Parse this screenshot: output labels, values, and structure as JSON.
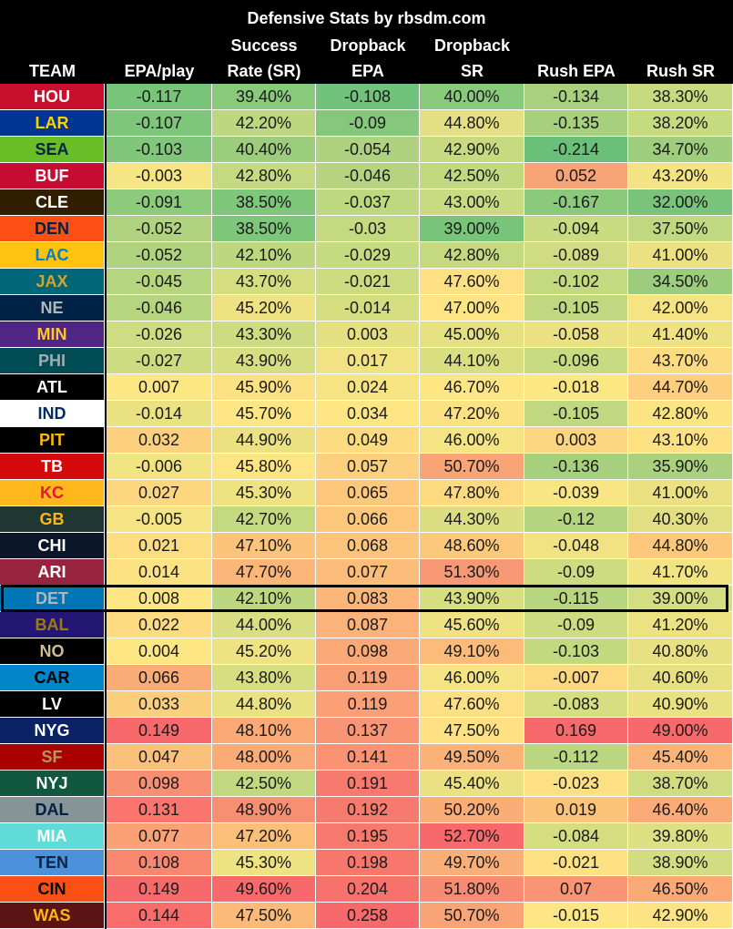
{
  "title": "Defensive Stats by rbsdm.com",
  "headers": [
    "TEAM",
    "EPA/play",
    "Success\nRate (SR)",
    "Dropback\nEPA",
    "Dropback\nSR",
    "Rush EPA",
    "Rush SR"
  ],
  "highlighted_team": "DET",
  "rows": [
    {
      "team": "HOU",
      "bg": "#c8102e",
      "fg": "#ffffff",
      "cells": [
        "-0.117",
        "39.40%",
        "-0.108",
        "40.00%",
        "-0.134",
        "38.30%"
      ],
      "colors": [
        "#78c57a",
        "#88c97b",
        "#71c27a",
        "#88c97b",
        "#a8d07e",
        "#c8da80"
      ]
    },
    {
      "team": "LAR",
      "bg": "#003594",
      "fg": "#ffd100",
      "cells": [
        "-0.107",
        "42.20%",
        "-0.09",
        "44.80%",
        "-0.135",
        "38.20%"
      ],
      "colors": [
        "#7ec67a",
        "#bdd780",
        "#86c87b",
        "#e3df82",
        "#a7d07e",
        "#c6da80"
      ]
    },
    {
      "team": "SEA",
      "bg": "#69be28",
      "fg": "#002244",
      "cells": [
        "-0.103",
        "40.40%",
        "-0.054",
        "42.90%",
        "-0.214",
        "34.70%"
      ],
      "colors": [
        "#80c67b",
        "#9ccd7d",
        "#aed27f",
        "#c7da80",
        "#6bc079",
        "#9dcd7d"
      ]
    },
    {
      "team": "BUF",
      "bg": "#c60c30",
      "fg": "#ffffff",
      "cells": [
        "-0.003",
        "42.80%",
        "-0.046",
        "42.50%",
        "0.052",
        "43.20%"
      ],
      "colors": [
        "#f6e683",
        "#c5da80",
        "#b6d47f",
        "#c2d980",
        "#f8a476",
        "#f4e383"
      ]
    },
    {
      "team": "CLE",
      "bg": "#311d00",
      "fg": "#ffffff",
      "cells": [
        "-0.091",
        "38.50%",
        "-0.037",
        "43.00%",
        "-0.167",
        "32.00%"
      ],
      "colors": [
        "#8cca7c",
        "#7ec67a",
        "#bed880",
        "#c9db81",
        "#8bca7c",
        "#79c47a"
      ]
    },
    {
      "team": "DEN",
      "bg": "#fb4f14",
      "fg": "#002244",
      "cells": [
        "-0.052",
        "38.50%",
        "-0.03",
        "39.00%",
        "-0.094",
        "37.50%"
      ],
      "colors": [
        "#b0d37f",
        "#7ec67a",
        "#c4d980",
        "#78c57a",
        "#cbdb81",
        "#c0d880"
      ]
    },
    {
      "team": "LAC",
      "bg": "#ffc20e",
      "fg": "#0080c6",
      "cells": [
        "-0.052",
        "42.10%",
        "-0.029",
        "42.80%",
        "-0.089",
        "41.00%"
      ],
      "colors": [
        "#b0d37f",
        "#bcd780",
        "#c6da80",
        "#c5da80",
        "#d0dc81",
        "#ebe182"
      ]
    },
    {
      "team": "JAX",
      "bg": "#006778",
      "fg": "#d7a22a",
      "cells": [
        "-0.045",
        "43.70%",
        "-0.021",
        "47.60%",
        "-0.102",
        "34.50%"
      ],
      "colors": [
        "#b6d57f",
        "#d4de81",
        "#cddc81",
        "#fde083",
        "#c4d980",
        "#9bcd7d"
      ]
    },
    {
      "team": "NE",
      "bg": "#002244",
      "fg": "#b0b7bc",
      "cells": [
        "-0.046",
        "45.20%",
        "-0.014",
        "47.00%",
        "-0.105",
        "42.00%"
      ],
      "colors": [
        "#b5d57f",
        "#eee282",
        "#d4de81",
        "#fee583",
        "#c1d880",
        "#f6e483"
      ]
    },
    {
      "team": "MIN",
      "bg": "#4f2683",
      "fg": "#ffc62f",
      "cells": [
        "-0.026",
        "43.30%",
        "0.003",
        "45.00%",
        "-0.058",
        "41.40%"
      ],
      "colors": [
        "#cedd81",
        "#cddc81",
        "#e4e082",
        "#e5e082",
        "#ebe182",
        "#efe283"
      ]
    },
    {
      "team": "PHI",
      "bg": "#004c54",
      "fg": "#a5acaf",
      "cells": [
        "-0.027",
        "43.90%",
        "0.017",
        "44.10%",
        "-0.096",
        "43.70%"
      ],
      "colors": [
        "#cddc81",
        "#d7de81",
        "#f1e383",
        "#d9de81",
        "#c9db81",
        "#fddb81"
      ]
    },
    {
      "team": "ATL",
      "bg": "#000000",
      "fg": "#ffffff",
      "cells": [
        "0.007",
        "45.90%",
        "0.024",
        "46.70%",
        "-0.018",
        "44.70%"
      ],
      "colors": [
        "#fde783",
        "#fde283",
        "#f6e483",
        "#fee683",
        "#fde783",
        "#fdcf7e"
      ]
    },
    {
      "team": "IND",
      "bg": "#ffffff",
      "fg": "#002c5f",
      "cells": [
        "-0.014",
        "45.70%",
        "0.034",
        "47.20%",
        "-0.105",
        "42.80%"
      ],
      "colors": [
        "#eae182",
        "#fde683",
        "#fde683",
        "#fde283",
        "#c1d880",
        "#fde483"
      ]
    },
    {
      "team": "PIT",
      "bg": "#000000",
      "fg": "#ffb612",
      "cells": [
        "0.032",
        "44.90%",
        "0.049",
        "46.00%",
        "0.003",
        "43.10%"
      ],
      "colors": [
        "#fcd07e",
        "#ebe182",
        "#fddb81",
        "#f5e483",
        "#fcd580",
        "#fde183"
      ]
    },
    {
      "team": "TB",
      "bg": "#d50a0a",
      "fg": "#ffffff",
      "cells": [
        "-0.006",
        "45.80%",
        "0.057",
        "50.70%",
        "-0.136",
        "35.90%"
      ],
      "colors": [
        "#f3e483",
        "#fee583",
        "#fdd07f",
        "#f9a476",
        "#a6cf7e",
        "#abd17e"
      ]
    },
    {
      "team": "KC",
      "bg": "#ffb81c",
      "fg": "#e31837",
      "cells": [
        "0.027",
        "45.30%",
        "0.065",
        "47.80%",
        "-0.039",
        "41.00%"
      ],
      "colors": [
        "#fdd680",
        "#efe283",
        "#fdc87c",
        "#fdda80",
        "#f8e583",
        "#ebe182"
      ]
    },
    {
      "team": "GB",
      "bg": "#203731",
      "fg": "#ffb612",
      "cells": [
        "-0.005",
        "42.70%",
        "0.066",
        "44.30%",
        "-0.12",
        "40.30%"
      ],
      "colors": [
        "#f4e483",
        "#c4d980",
        "#fdc77c",
        "#dbdf81",
        "#b4d47f",
        "#e2df82"
      ]
    },
    {
      "team": "CHI",
      "bg": "#0b162a",
      "fg": "#ffffff",
      "cells": [
        "0.021",
        "47.10%",
        "0.068",
        "48.60%",
        "-0.048",
        "44.80%"
      ],
      "colors": [
        "#fddd81",
        "#fcc47b",
        "#fdc57b",
        "#fcc97c",
        "#f1e383",
        "#fcc97c"
      ]
    },
    {
      "team": "ARI",
      "bg": "#97233f",
      "fg": "#ffffff",
      "cells": [
        "0.014",
        "47.70%",
        "0.077",
        "51.30%",
        "-0.09",
        "41.70%"
      ],
      "colors": [
        "#fde283",
        "#fcb679",
        "#fdbd7a",
        "#f89975",
        "#cedc81",
        "#f2e383"
      ]
    },
    {
      "team": "DET",
      "bg": "#0076b6",
      "fg": "#b0b7bc",
      "cells": [
        "0.008",
        "42.10%",
        "0.083",
        "43.90%",
        "-0.115",
        "39.00%"
      ],
      "colors": [
        "#fde683",
        "#bcd780",
        "#fcb679",
        "#d6de81",
        "#b8d57f",
        "#d3dd81"
      ]
    },
    {
      "team": "BAL",
      "bg": "#241773",
      "fg": "#9e7c0c",
      "cells": [
        "0.022",
        "44.00%",
        "0.087",
        "45.60%",
        "-0.09",
        "41.20%"
      ],
      "colors": [
        "#fddc81",
        "#d8de81",
        "#fcb278",
        "#eee282",
        "#cedc81",
        "#ede282"
      ]
    },
    {
      "team": "NO",
      "bg": "#000000",
      "fg": "#d3bc8d",
      "cells": [
        "0.004",
        "45.20%",
        "0.098",
        "49.10%",
        "-0.103",
        "40.80%"
      ],
      "colors": [
        "#fee783",
        "#eee282",
        "#fba977",
        "#fcbb79",
        "#c3d980",
        "#e8e082"
      ]
    },
    {
      "team": "CAR",
      "bg": "#0085ca",
      "fg": "#000000",
      "cells": [
        "0.066",
        "43.80%",
        "0.119",
        "46.00%",
        "-0.007",
        "40.60%"
      ],
      "colors": [
        "#faac77",
        "#d6de81",
        "#fa9f76",
        "#f5e483",
        "#fdd981",
        "#e6e082"
      ]
    },
    {
      "team": "LV",
      "bg": "#000000",
      "fg": "#ffffff",
      "cells": [
        "0.033",
        "44.80%",
        "0.119",
        "47.60%",
        "-0.083",
        "40.90%"
      ],
      "colors": [
        "#fccf7e",
        "#e9e182",
        "#fa9f76",
        "#fde083",
        "#d5de81",
        "#e9e182"
      ]
    },
    {
      "team": "NYG",
      "bg": "#0b2265",
      "fg": "#ffffff",
      "cells": [
        "0.149",
        "48.10%",
        "0.137",
        "47.50%",
        "0.169",
        "49.00%"
      ],
      "colors": [
        "#f8696b",
        "#fba977",
        "#f99574",
        "#fde183",
        "#f8696b",
        "#f8696b"
      ]
    },
    {
      "team": "SF",
      "bg": "#aa0000",
      "fg": "#b3995d",
      "cells": [
        "0.047",
        "48.00%",
        "0.141",
        "49.50%",
        "-0.112",
        "45.40%"
      ],
      "colors": [
        "#fbc07a",
        "#fbab77",
        "#f99373",
        "#fbb278",
        "#bbd680",
        "#fbb579"
      ]
    },
    {
      "team": "NYJ",
      "bg": "#125740",
      "fg": "#ffffff",
      "cells": [
        "0.098",
        "42.50%",
        "0.191",
        "45.40%",
        "-0.023",
        "38.70%"
      ],
      "colors": [
        "#f98f72",
        "#c1d880",
        "#f77a6e",
        "#ebe182",
        "#fde083",
        "#cfdc81"
      ]
    },
    {
      "team": "DAL",
      "bg": "#869397",
      "fg": "#041e42",
      "cells": [
        "0.131",
        "48.90%",
        "0.192",
        "50.20%",
        "0.019",
        "46.40%"
      ],
      "colors": [
        "#f9756d",
        "#f98f72",
        "#f77a6e",
        "#fbac77",
        "#fcc37b",
        "#fbab77"
      ]
    },
    {
      "team": "MIA",
      "bg": "#5fdcd8",
      "fg": "#ffffff",
      "cells": [
        "0.077",
        "47.20%",
        "0.195",
        "52.70%",
        "-0.084",
        "39.80%"
      ],
      "colors": [
        "#faa276",
        "#fcbf7a",
        "#f7796e",
        "#f8696b",
        "#d4de81",
        "#dcdf82"
      ]
    },
    {
      "team": "TEN",
      "bg": "#4b92db",
      "fg": "#0c2340",
      "cells": [
        "0.108",
        "45.30%",
        "0.198",
        "49.70%",
        "-0.021",
        "38.90%"
      ],
      "colors": [
        "#f9876f",
        "#efe283",
        "#f7776d",
        "#faaf78",
        "#fde183",
        "#d2dd81"
      ]
    },
    {
      "team": "CIN",
      "bg": "#fb4f14",
      "fg": "#000000",
      "cells": [
        "0.149",
        "49.60%",
        "0.204",
        "51.80%",
        "0.07",
        "46.50%"
      ],
      "colors": [
        "#f8696b",
        "#f8696b",
        "#f7726d",
        "#f88b72",
        "#f99474",
        "#fba977"
      ]
    },
    {
      "team": "WAS",
      "bg": "#5a1414",
      "fg": "#ffb612",
      "cells": [
        "0.144",
        "47.50%",
        "0.258",
        "50.70%",
        "-0.015",
        "42.90%"
      ],
      "colors": [
        "#f86c6b",
        "#fcba7a",
        "#f8696b",
        "#f9a476",
        "#fde683",
        "#fde383"
      ]
    }
  ]
}
